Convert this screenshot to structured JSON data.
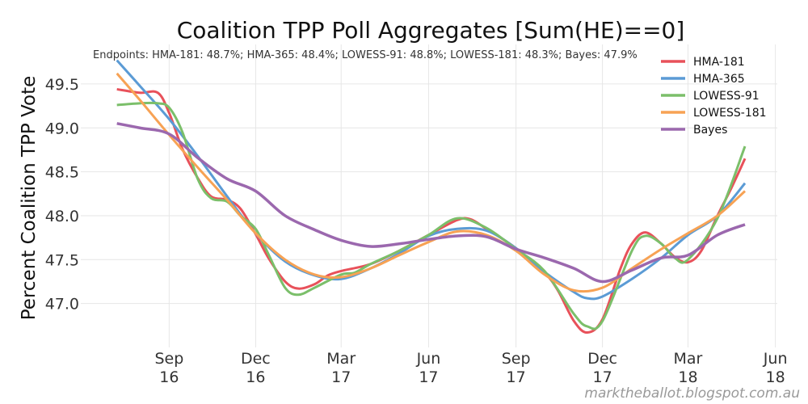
{
  "chart_data": {
    "type": "line",
    "title": "Coalition TPP Poll Aggregates [Sum(HE)==0]",
    "annotation": "Endpoints: HMA-181: 48.7%; HMA-365: 48.4%; LOWESS-91: 48.8%; LOWESS-181: 48.3%; Bayes: 47.9%",
    "ylabel": "Percent Coalition TPP Vote",
    "xlabel": "",
    "ylim": [
      46.5,
      49.95
    ],
    "xlim": [
      "2016-05-31",
      "2018-06-03"
    ],
    "grid": true,
    "legend_placement": "top-right",
    "yticks": [
      47.0,
      47.5,
      48.0,
      48.5,
      49.0,
      49.5
    ],
    "ytick_labels": [
      "47.0",
      "47.5",
      "48.0",
      "48.5",
      "49.0",
      "49.5"
    ],
    "xticks": [
      {
        "date": "2016-09-01",
        "line1": "Sep",
        "line2": "16"
      },
      {
        "date": "2016-12-01",
        "line1": "Dec",
        "line2": "16"
      },
      {
        "date": "2017-03-01",
        "line1": "Mar",
        "line2": "17"
      },
      {
        "date": "2017-06-01",
        "line1": "Jun",
        "line2": "17"
      },
      {
        "date": "2017-09-01",
        "line1": "Sep",
        "line2": "17"
      },
      {
        "date": "2017-12-01",
        "line1": "Dec",
        "line2": "17"
      },
      {
        "date": "2018-03-01",
        "line1": "Mar",
        "line2": "18"
      },
      {
        "date": "2018-06-01",
        "line1": "Jun",
        "line2": "18"
      }
    ],
    "series": [
      {
        "name": "HMA-181",
        "color": "#e8515a",
        "x": [
          "2016-07-08",
          "2016-08-01",
          "2016-08-20",
          "2016-09-01",
          "2016-09-15",
          "2016-10-01",
          "2016-10-15",
          "2016-11-01",
          "2016-11-15",
          "2016-12-01",
          "2016-12-15",
          "2017-01-01",
          "2017-01-15",
          "2017-02-01",
          "2017-02-15",
          "2017-03-01",
          "2017-04-01",
          "2017-05-01",
          "2017-06-01",
          "2017-07-01",
          "2017-07-15",
          "2017-08-01",
          "2017-09-01",
          "2017-10-01",
          "2017-10-15",
          "2017-11-01",
          "2017-11-15",
          "2017-12-01",
          "2017-12-20",
          "2018-01-01",
          "2018-01-15",
          "2018-02-01",
          "2018-02-15",
          "2018-03-01",
          "2018-03-15",
          "2018-04-01",
          "2018-04-15",
          "2018-04-30"
        ],
        "y": [
          49.44,
          49.4,
          49.4,
          49.17,
          48.76,
          48.43,
          48.22,
          48.18,
          48.08,
          47.79,
          47.51,
          47.25,
          47.17,
          47.22,
          47.32,
          47.37,
          47.45,
          47.6,
          47.78,
          47.95,
          47.96,
          47.85,
          47.63,
          47.35,
          47.15,
          46.8,
          46.67,
          46.82,
          47.4,
          47.68,
          47.81,
          47.68,
          47.53,
          47.47,
          47.6,
          48.0,
          48.3,
          48.65
        ]
      },
      {
        "name": "HMA-365",
        "color": "#5b9bd5",
        "x": [
          "2016-07-08",
          "2016-08-01",
          "2016-09-01",
          "2016-10-01",
          "2016-11-01",
          "2016-12-01",
          "2017-01-01",
          "2017-02-01",
          "2017-03-01",
          "2017-04-01",
          "2017-05-01",
          "2017-06-01",
          "2017-07-01",
          "2017-08-01",
          "2017-09-01",
          "2017-10-01",
          "2017-11-01",
          "2017-11-15",
          "2017-12-01",
          "2018-01-01",
          "2018-02-01",
          "2018-03-01",
          "2018-04-01",
          "2018-04-30"
        ],
        "y": [
          49.77,
          49.48,
          49.1,
          48.68,
          48.22,
          47.8,
          47.48,
          47.32,
          47.28,
          47.4,
          47.57,
          47.77,
          47.85,
          47.83,
          47.63,
          47.36,
          47.13,
          47.06,
          47.08,
          47.28,
          47.52,
          47.78,
          48.0,
          48.37
        ]
      },
      {
        "name": "LOWESS-91",
        "color": "#7bbf6a",
        "x": [
          "2016-07-08",
          "2016-08-01",
          "2016-08-20",
          "2016-09-01",
          "2016-09-15",
          "2016-10-01",
          "2016-10-15",
          "2016-11-01",
          "2016-11-15",
          "2016-12-01",
          "2016-12-15",
          "2017-01-01",
          "2017-01-15",
          "2017-02-01",
          "2017-03-01",
          "2017-03-15",
          "2017-04-01",
          "2017-05-01",
          "2017-06-01",
          "2017-07-01",
          "2017-08-01",
          "2017-09-01",
          "2017-10-01",
          "2017-11-01",
          "2017-11-15",
          "2017-12-01",
          "2018-01-01",
          "2018-01-15",
          "2018-02-01",
          "2018-02-15",
          "2018-03-01",
          "2018-04-01",
          "2018-04-30"
        ],
        "y": [
          49.26,
          49.28,
          49.28,
          49.23,
          48.95,
          48.42,
          48.2,
          48.16,
          48.0,
          47.85,
          47.55,
          47.18,
          47.1,
          47.18,
          47.33,
          47.35,
          47.45,
          47.6,
          47.78,
          47.97,
          47.86,
          47.62,
          47.37,
          46.88,
          46.74,
          46.8,
          47.6,
          47.77,
          47.68,
          47.52,
          47.5,
          47.97,
          48.79
        ]
      },
      {
        "name": "LOWESS-181",
        "color": "#f7a254",
        "x": [
          "2016-07-08",
          "2016-08-01",
          "2016-09-01",
          "2016-10-01",
          "2016-11-01",
          "2016-12-01",
          "2017-01-01",
          "2017-02-01",
          "2017-03-01",
          "2017-04-01",
          "2017-05-01",
          "2017-06-01",
          "2017-07-01",
          "2017-08-01",
          "2017-09-01",
          "2017-10-01",
          "2017-11-01",
          "2017-12-01",
          "2018-01-01",
          "2018-02-01",
          "2018-03-01",
          "2018-04-01",
          "2018-04-30"
        ],
        "y": [
          49.62,
          49.32,
          48.92,
          48.55,
          48.18,
          47.8,
          47.5,
          47.33,
          47.3,
          47.4,
          47.55,
          47.7,
          47.82,
          47.78,
          47.6,
          47.33,
          47.15,
          47.18,
          47.4,
          47.62,
          47.8,
          48.0,
          48.28
        ]
      },
      {
        "name": "Bayes",
        "color": "#9b68ae",
        "x": [
          "2016-07-08",
          "2016-08-01",
          "2016-09-01",
          "2016-10-01",
          "2016-11-01",
          "2016-12-01",
          "2017-01-01",
          "2017-02-01",
          "2017-03-01",
          "2017-04-01",
          "2017-05-01",
          "2017-06-01",
          "2017-07-01",
          "2017-08-01",
          "2017-09-01",
          "2017-10-01",
          "2017-11-01",
          "2017-12-01",
          "2018-01-01",
          "2018-02-01",
          "2018-03-01",
          "2018-04-01",
          "2018-04-30"
        ],
        "y": [
          49.05,
          49.0,
          48.93,
          48.66,
          48.42,
          48.28,
          48.0,
          47.84,
          47.72,
          47.65,
          47.68,
          47.73,
          47.77,
          47.76,
          47.62,
          47.52,
          47.4,
          47.25,
          47.38,
          47.52,
          47.55,
          47.78,
          47.9
        ]
      }
    ]
  },
  "credit": "marktheballot.blogspot.com.au"
}
